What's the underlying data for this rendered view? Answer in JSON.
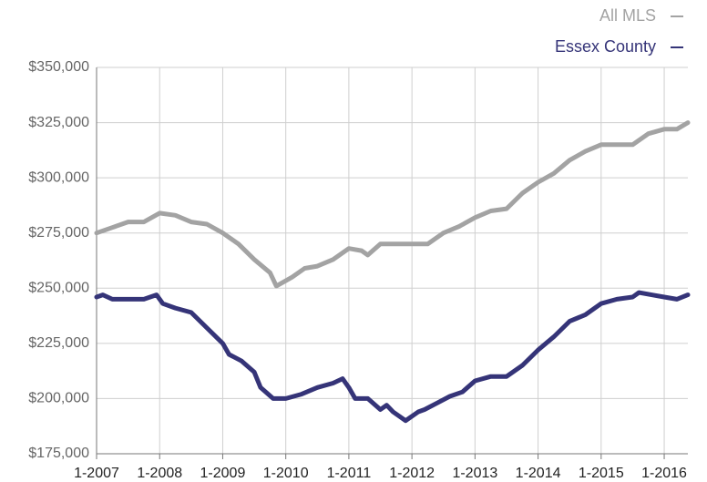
{
  "chart_data": {
    "type": "line",
    "series": [
      {
        "name": "All MLS",
        "color": "#a3a3a3",
        "x": [
          2007.0,
          2007.25,
          2007.5,
          2007.75,
          2008.0,
          2008.25,
          2008.5,
          2008.75,
          2009.0,
          2009.25,
          2009.5,
          2009.75,
          2009.85,
          2010.1,
          2010.3,
          2010.5,
          2010.75,
          2011.0,
          2011.2,
          2011.3,
          2011.5,
          2012.0,
          2012.25,
          2012.5,
          2012.75,
          2013.0,
          2013.25,
          2013.5,
          2013.75,
          2014.0,
          2014.25,
          2014.5,
          2014.75,
          2015.0,
          2015.25,
          2015.5,
          2015.75,
          2016.0,
          2016.2,
          2016.375
        ],
        "values": [
          275000,
          277500,
          280000,
          280000,
          284000,
          283000,
          280000,
          279000,
          275000,
          270000,
          263000,
          257000,
          251000,
          255000,
          259000,
          260000,
          263000,
          268000,
          267000,
          265000,
          270000,
          270000,
          270000,
          275000,
          278000,
          282000,
          285000,
          286000,
          293000,
          298000,
          302000,
          308000,
          312000,
          315000,
          315000,
          315000,
          320000,
          322000,
          322000,
          325000
        ]
      },
      {
        "name": "Essex County",
        "color": "#353478",
        "x": [
          2007.0,
          2007.1,
          2007.25,
          2007.5,
          2007.75,
          2007.95,
          2008.05,
          2008.25,
          2008.5,
          2008.75,
          2009.0,
          2009.1,
          2009.3,
          2009.5,
          2009.6,
          2009.8,
          2010.0,
          2010.25,
          2010.5,
          2010.75,
          2010.9,
          2011.0,
          2011.1,
          2011.3,
          2011.5,
          2011.6,
          2011.7,
          2011.9,
          2012.1,
          2012.2,
          2012.4,
          2012.6,
          2012.8,
          2013.0,
          2013.25,
          2013.5,
          2013.75,
          2014.0,
          2014.25,
          2014.5,
          2014.75,
          2015.0,
          2015.25,
          2015.5,
          2015.6,
          2015.8,
          2016.0,
          2016.2,
          2016.375
        ],
        "values": [
          246000,
          247000,
          245000,
          245000,
          245000,
          247000,
          243000,
          241000,
          239000,
          232000,
          225000,
          220000,
          217000,
          212000,
          205000,
          200000,
          200000,
          202000,
          205000,
          207000,
          209000,
          205000,
          200000,
          200000,
          195000,
          197000,
          194000,
          190000,
          194000,
          195000,
          198000,
          201000,
          203000,
          208000,
          210000,
          210000,
          215000,
          222000,
          228000,
          235000,
          238000,
          243000,
          245000,
          246000,
          248000,
          247000,
          246000,
          245000,
          247000
        ]
      }
    ],
    "xlim": [
      2007,
      2016.375
    ],
    "xticks": [
      {
        "value": 2007,
        "label": "1-2007"
      },
      {
        "value": 2008,
        "label": "1-2008"
      },
      {
        "value": 2009,
        "label": "1-2009"
      },
      {
        "value": 2010,
        "label": "1-2010"
      },
      {
        "value": 2011,
        "label": "1-2011"
      },
      {
        "value": 2012,
        "label": "1-2012"
      },
      {
        "value": 2013,
        "label": "1-2013"
      },
      {
        "value": 2014,
        "label": "1-2014"
      },
      {
        "value": 2015,
        "label": "1-2015"
      },
      {
        "value": 2016,
        "label": "1-2016"
      }
    ],
    "ylim": [
      175000,
      350000
    ],
    "yticks": [
      {
        "value": 175000,
        "label": "$175,000"
      },
      {
        "value": 200000,
        "label": "$200,000"
      },
      {
        "value": 225000,
        "label": "$225,000"
      },
      {
        "value": 250000,
        "label": "$250,000"
      },
      {
        "value": 275000,
        "label": "$275,000"
      },
      {
        "value": 300000,
        "label": "$300,000"
      },
      {
        "value": 325000,
        "label": "$325,000"
      },
      {
        "value": 350000,
        "label": "$350,000"
      }
    ],
    "grid": true,
    "legend": "top-right"
  }
}
